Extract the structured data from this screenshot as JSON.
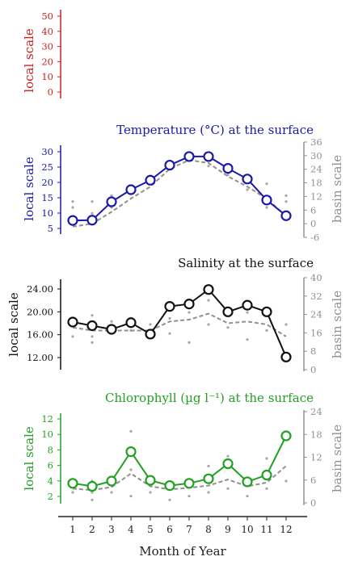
{
  "colors": {
    "top_panel": "#cc2222",
    "temperature": "#1a1aaa",
    "salinity": "#111111",
    "chlorophyll": "#22a022",
    "basin": "#909090",
    "scatter": "#a6a6a6",
    "axis": "#222222"
  },
  "axes": {
    "local_label": "local scale",
    "basin_label": "basin scale",
    "xlabel": "Month of Year"
  },
  "chart_data": [
    {
      "type": "line",
      "title": "",
      "ylabel": "local scale",
      "ylim": [
        0,
        55
      ],
      "yticks": [
        "50",
        "40",
        "30",
        "20",
        "10",
        "0"
      ],
      "series": []
    },
    {
      "type": "line",
      "title": "Temperature (°C) at the surface",
      "ylabel": "local scale",
      "ylabel_right": "basin scale",
      "ylim": [
        3,
        33
      ],
      "yticks": [
        "30",
        "25",
        "20",
        "15",
        "10",
        "5"
      ],
      "y2lim": [
        -6,
        36
      ],
      "y2ticks": [
        "36",
        "30",
        "24",
        "18",
        "12",
        "6",
        "0",
        "-6"
      ],
      "x": [
        1,
        2,
        3,
        4,
        5,
        6,
        7,
        8,
        9,
        10,
        11,
        12
      ],
      "series": [
        {
          "role": "local",
          "values": [
            7.6,
            7.7,
            13.9,
            18.0,
            21.2,
            26.3,
            29.2,
            29.2,
            25.2,
            21.6,
            14.5,
            9.2
          ]
        },
        {
          "role": "basin",
          "values": [
            5.5,
            6.5,
            10.5,
            15.0,
            19.0,
            25.0,
            28.0,
            27.0,
            22.5,
            19.0,
            15.0,
            9.0
          ]
        }
      ],
      "scatter": {
        "x": [
          1,
          1,
          2,
          2,
          3,
          3,
          4,
          4,
          5,
          5,
          6,
          6,
          7,
          7,
          8,
          8,
          9,
          9,
          10,
          10,
          11,
          11,
          12,
          12
        ],
        "y": [
          14,
          12,
          14,
          10,
          16,
          12,
          19,
          17,
          22,
          20,
          27,
          25,
          29,
          28,
          29,
          26,
          25,
          23,
          21,
          18,
          20,
          12,
          16,
          14
        ]
      }
    },
    {
      "type": "line",
      "title": "Salinity at the surface",
      "ylabel": "local scale",
      "ylabel_right": "basin scale",
      "ylim": [
        10.5,
        25.5
      ],
      "yticks": [
        "24.00",
        "20.00",
        "16.00",
        "12.00"
      ],
      "y2lim": [
        0,
        40
      ],
      "y2ticks": [
        "40",
        "32",
        "24",
        "16",
        "8",
        "0"
      ],
      "x": [
        1,
        2,
        3,
        4,
        5,
        6,
        7,
        8,
        9,
        10,
        11,
        12
      ],
      "series": [
        {
          "role": "local",
          "values": [
            18.4,
            17.8,
            17.2,
            18.3,
            16.4,
            21.0,
            21.4,
            23.8,
            20.1,
            21.2,
            20.1,
            12.6
          ]
        },
        {
          "role": "basin",
          "values": [
            17.5,
            17.0,
            17.0,
            17.0,
            17.0,
            18.5,
            18.8,
            19.8,
            18.2,
            18.5,
            18.0,
            16.0
          ]
        }
      ],
      "scatter": {
        "x": [
          1,
          1,
          2,
          2,
          2,
          3,
          3,
          4,
          4,
          5,
          5,
          6,
          6,
          7,
          7,
          8,
          8,
          9,
          9,
          10,
          10,
          11,
          11,
          12,
          12
        ],
        "y": [
          19,
          16,
          19.5,
          16,
          15,
          18.5,
          16.5,
          19,
          17,
          18,
          16,
          19,
          16.5,
          20,
          15,
          22,
          18,
          20,
          17.5,
          20,
          15.5,
          20,
          17,
          18,
          13
        ]
      }
    },
    {
      "type": "line",
      "title": "Chlorophyll (µg l⁻¹) at the surface",
      "ylabel": "local scale",
      "ylabel_right": "basin scale",
      "ylim": [
        1,
        13
      ],
      "yticks": [
        "12",
        "10",
        "8",
        "6",
        "4",
        "2"
      ],
      "y2lim": [
        0,
        24
      ],
      "y2ticks": [
        "24",
        "18",
        "12",
        "6",
        "0"
      ],
      "x": [
        1,
        2,
        3,
        4,
        5,
        6,
        7,
        8,
        9,
        10,
        11,
        12
      ],
      "series": [
        {
          "role": "local",
          "values": [
            3.7,
            3.3,
            4.0,
            7.9,
            4.1,
            3.4,
            3.7,
            4.3,
            6.3,
            3.9,
            4.8,
            10.0
          ]
        },
        {
          "role": "basin",
          "values": [
            3.0,
            2.8,
            3.2,
            5.0,
            3.3,
            2.9,
            3.1,
            3.4,
            4.2,
            3.3,
            3.8,
            6.0
          ]
        }
      ],
      "scatter": {
        "x": [
          1,
          1,
          2,
          2,
          2,
          3,
          3,
          4,
          4,
          4,
          5,
          5,
          6,
          6,
          7,
          7,
          8,
          8,
          9,
          9,
          10,
          10,
          11,
          11,
          12,
          12
        ],
        "y": [
          3.5,
          2.5,
          4,
          2.5,
          1.5,
          4.5,
          2.5,
          10.6,
          5.5,
          2,
          4,
          2.5,
          3.5,
          1.5,
          4,
          2,
          6,
          2.5,
          7.3,
          3,
          4,
          2,
          7,
          3,
          9.5,
          4
        ]
      }
    }
  ],
  "xaxis": {
    "ticks": [
      "1",
      "2",
      "3",
      "4",
      "5",
      "6",
      "7",
      "8",
      "9",
      "10",
      "11",
      "12"
    ]
  }
}
